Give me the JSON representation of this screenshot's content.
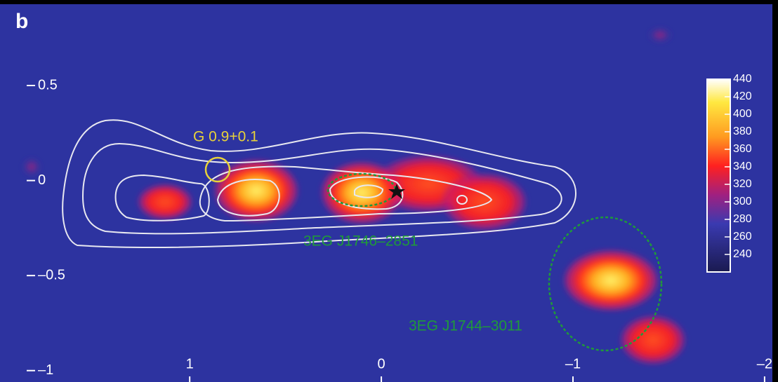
{
  "chart_data": {
    "type": "heatmap",
    "panel_label": "b",
    "xlim": [
      1.99,
      -2.07
    ],
    "ylim": [
      -1.06,
      0.95
    ],
    "xticks": [
      1,
      0,
      {
        "value": -1,
        "label": "–1"
      },
      {
        "value": -2,
        "label": "–2"
      }
    ],
    "yticks": [
      0.5,
      0,
      {
        "value": -0.5,
        "label": "–0.5"
      },
      {
        "value": -1,
        "label": "–1"
      }
    ],
    "clim": [
      220,
      440
    ],
    "cticks": [
      240,
      260,
      280,
      300,
      320,
      340,
      360,
      380,
      400,
      420,
      440
    ],
    "annotations": [
      "G 0.9+0.1",
      "3EG J1746–2851",
      "3EG J1744–3011"
    ]
  }
}
